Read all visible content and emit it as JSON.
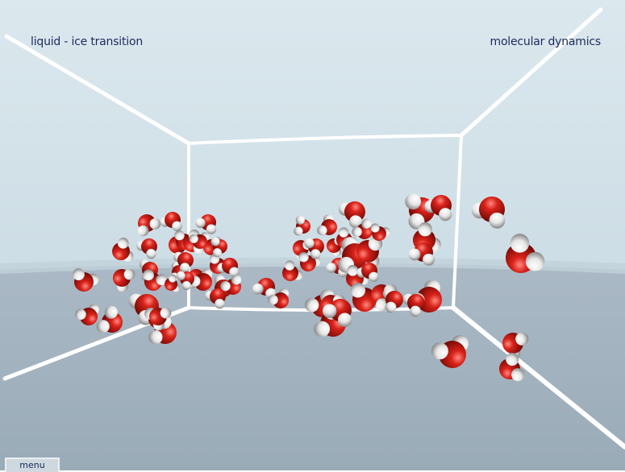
{
  "scene": {
    "title": "liquid - ice transition",
    "subtitle": "molecular dynamics"
  },
  "menu": {
    "label": "menu"
  },
  "colors": {
    "wall": "#d4e3ea",
    "floor": "#9fb0bd",
    "edge": "#ffffff",
    "oxygen": "#c8160f",
    "hydrogen": "#f2f2f2",
    "text": "#1d2a5c"
  }
}
